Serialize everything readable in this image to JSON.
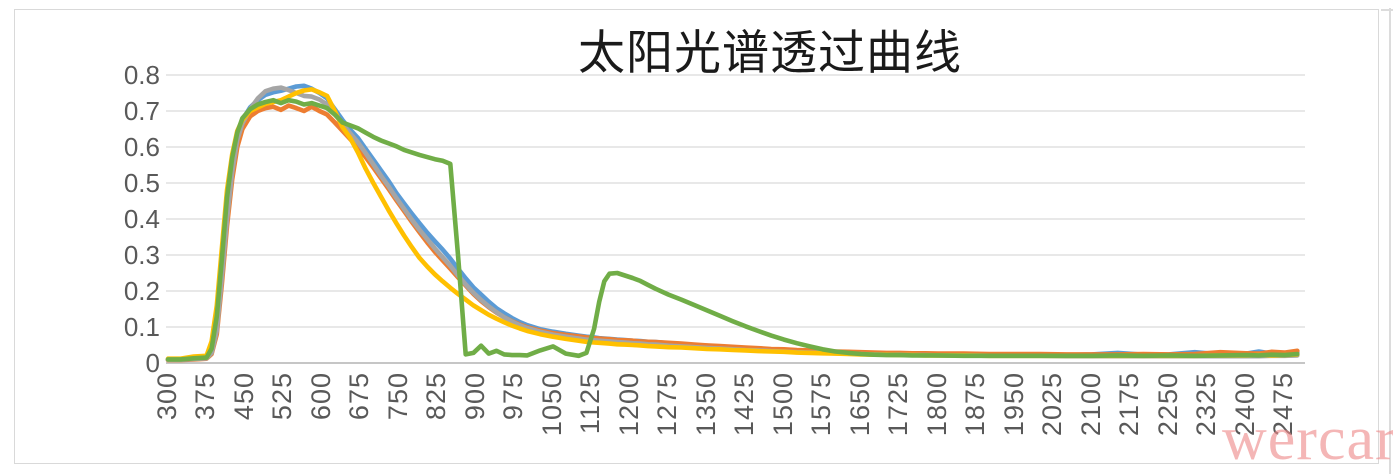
{
  "title": "太阳光谱透过曲线",
  "watermark": "wercar",
  "colors": {
    "background": "#ffffff",
    "frame_border": "#d9d9d9",
    "gridline": "#d9d9d9",
    "zero_axis_line": "#c6c6c6",
    "tick_label": "#595959",
    "title_text": "#1a1a1a",
    "watermark_text": "#ee8a8a"
  },
  "chart_data": {
    "type": "line",
    "title": "太阳光谱透过曲线",
    "xlabel": "",
    "ylabel": "",
    "legend": "none",
    "grid": true,
    "ylim": [
      0,
      0.8
    ],
    "xlim": [
      300,
      2510
    ],
    "y_ticks": [
      0,
      0.1,
      0.2,
      0.3,
      0.4,
      0.5,
      0.6,
      0.7,
      0.8
    ],
    "y_tick_labels": [
      "0",
      "0.1",
      "0.2",
      "0.3",
      "0.4",
      "0.5",
      "0.6",
      "0.7",
      "0.8"
    ],
    "x_tick_values": [
      300,
      375,
      450,
      525,
      600,
      675,
      750,
      825,
      900,
      975,
      1050,
      1125,
      1200,
      1275,
      1350,
      1425,
      1500,
      1575,
      1650,
      1725,
      1800,
      1875,
      1950,
      2025,
      2100,
      2175,
      2250,
      2325,
      2400,
      2475
    ],
    "x": [
      300,
      325,
      350,
      375,
      385,
      395,
      405,
      415,
      425,
      435,
      445,
      460,
      475,
      490,
      505,
      520,
      535,
      550,
      565,
      580,
      595,
      610,
      625,
      640,
      655,
      670,
      685,
      700,
      715,
      730,
      745,
      760,
      775,
      790,
      805,
      820,
      835,
      850,
      865,
      880,
      895,
      910,
      925,
      940,
      955,
      970,
      985,
      1000,
      1025,
      1050,
      1075,
      1100,
      1115,
      1130,
      1140,
      1150,
      1160,
      1175,
      1190,
      1205,
      1220,
      1235,
      1250,
      1275,
      1300,
      1325,
      1350,
      1375,
      1400,
      1425,
      1450,
      1475,
      1500,
      1525,
      1550,
      1575,
      1600,
      1625,
      1650,
      1675,
      1700,
      1725,
      1750,
      1775,
      1800,
      1850,
      1900,
      1950,
      2000,
      2050,
      2100,
      2150,
      2200,
      2250,
      2300,
      2350,
      2400,
      2425,
      2450,
      2475,
      2500
    ],
    "series": [
      {
        "name": "series1",
        "color": "#5B9BD5",
        "values": [
          0.01,
          0.01,
          0.012,
          0.015,
          0.03,
          0.1,
          0.25,
          0.42,
          0.55,
          0.63,
          0.675,
          0.71,
          0.73,
          0.745,
          0.752,
          0.756,
          0.762,
          0.768,
          0.77,
          0.762,
          0.75,
          0.735,
          0.705,
          0.675,
          0.648,
          0.625,
          0.595,
          0.565,
          0.535,
          0.505,
          0.472,
          0.443,
          0.415,
          0.388,
          0.362,
          0.338,
          0.315,
          0.29,
          0.262,
          0.235,
          0.21,
          0.19,
          0.17,
          0.152,
          0.138,
          0.125,
          0.114,
          0.105,
          0.094,
          0.087,
          0.081,
          0.076,
          0.073,
          0.071,
          0.069,
          0.068,
          0.067,
          0.065,
          0.064,
          0.062,
          0.061,
          0.059,
          0.058,
          0.055,
          0.052,
          0.05,
          0.048,
          0.045,
          0.043,
          0.041,
          0.039,
          0.037,
          0.036,
          0.034,
          0.033,
          0.031,
          0.03,
          0.029,
          0.028,
          0.027,
          0.026,
          0.026,
          0.025,
          0.025,
          0.024,
          0.024,
          0.023,
          0.023,
          0.023,
          0.022,
          0.024,
          0.028,
          0.023,
          0.024,
          0.03,
          0.024,
          0.026,
          0.032,
          0.026,
          0.028,
          0.03
        ]
      },
      {
        "name": "series2",
        "color": "#ED7D31",
        "values": [
          0.008,
          0.008,
          0.01,
          0.012,
          0.025,
          0.08,
          0.22,
          0.38,
          0.51,
          0.6,
          0.65,
          0.685,
          0.7,
          0.708,
          0.712,
          0.703,
          0.715,
          0.708,
          0.7,
          0.712,
          0.7,
          0.69,
          0.668,
          0.645,
          0.622,
          0.6,
          0.572,
          0.543,
          0.513,
          0.483,
          0.452,
          0.422,
          0.392,
          0.363,
          0.335,
          0.309,
          0.285,
          0.262,
          0.238,
          0.215,
          0.192,
          0.172,
          0.155,
          0.14,
          0.127,
          0.116,
          0.107,
          0.099,
          0.09,
          0.083,
          0.078,
          0.074,
          0.071,
          0.069,
          0.068,
          0.067,
          0.066,
          0.064,
          0.063,
          0.062,
          0.06,
          0.059,
          0.058,
          0.056,
          0.054,
          0.051,
          0.049,
          0.047,
          0.045,
          0.043,
          0.041,
          0.039,
          0.038,
          0.036,
          0.035,
          0.033,
          0.032,
          0.031,
          0.03,
          0.029,
          0.028,
          0.028,
          0.027,
          0.027,
          0.026,
          0.026,
          0.025,
          0.025,
          0.025,
          0.024,
          0.024,
          0.024,
          0.025,
          0.024,
          0.025,
          0.03,
          0.027,
          0.026,
          0.031,
          0.029,
          0.034
        ]
      },
      {
        "name": "series3",
        "color": "#A5A5A5",
        "values": [
          0.009,
          0.009,
          0.011,
          0.013,
          0.028,
          0.09,
          0.24,
          0.4,
          0.53,
          0.62,
          0.665,
          0.705,
          0.735,
          0.755,
          0.762,
          0.765,
          0.758,
          0.75,
          0.742,
          0.74,
          0.732,
          0.718,
          0.692,
          0.664,
          0.638,
          0.613,
          0.583,
          0.552,
          0.52,
          0.49,
          0.458,
          0.428,
          0.398,
          0.37,
          0.344,
          0.318,
          0.294,
          0.27,
          0.243,
          0.218,
          0.195,
          0.175,
          0.157,
          0.141,
          0.127,
          0.115,
          0.105,
          0.097,
          0.087,
          0.079,
          0.073,
          0.068,
          0.065,
          0.063,
          0.062,
          0.061,
          0.06,
          0.058,
          0.057,
          0.055,
          0.054,
          0.052,
          0.051,
          0.048,
          0.046,
          0.044,
          0.042,
          0.04,
          0.038,
          0.036,
          0.035,
          0.033,
          0.032,
          0.03,
          0.029,
          0.028,
          0.027,
          0.026,
          0.025,
          0.024,
          0.023,
          0.023,
          0.022,
          0.022,
          0.021,
          0.021,
          0.02,
          0.02,
          0.02,
          0.019,
          0.019,
          0.019,
          0.019,
          0.019,
          0.019,
          0.019,
          0.019,
          0.019,
          0.02,
          0.02,
          0.021
        ]
      },
      {
        "name": "series4",
        "color": "#FFC000",
        "values": [
          0.012,
          0.012,
          0.018,
          0.02,
          0.06,
          0.16,
          0.32,
          0.48,
          0.58,
          0.645,
          0.675,
          0.7,
          0.71,
          0.72,
          0.725,
          0.73,
          0.74,
          0.75,
          0.757,
          0.76,
          0.752,
          0.742,
          0.7,
          0.655,
          0.625,
          0.585,
          0.54,
          0.5,
          0.462,
          0.424,
          0.388,
          0.354,
          0.322,
          0.292,
          0.268,
          0.246,
          0.227,
          0.209,
          0.192,
          0.176,
          0.16,
          0.147,
          0.134,
          0.123,
          0.113,
          0.104,
          0.096,
          0.089,
          0.08,
          0.073,
          0.067,
          0.062,
          0.059,
          0.057,
          0.056,
          0.055,
          0.054,
          0.052,
          0.051,
          0.05,
          0.049,
          0.047,
          0.046,
          0.044,
          0.043,
          0.041,
          0.039,
          0.038,
          0.036,
          0.035,
          0.033,
          0.032,
          0.031,
          0.029,
          0.028,
          0.027,
          0.026,
          0.025,
          0.024,
          0.023,
          0.023,
          0.022,
          0.022,
          0.021,
          0.021,
          0.021,
          0.02,
          0.02,
          0.02,
          0.02,
          0.02,
          0.02,
          0.02,
          0.02,
          0.02,
          0.021,
          0.021,
          0.022,
          0.021,
          0.022,
          0.024
        ]
      },
      {
        "name": "series5",
        "color": "#70AD47",
        "values": [
          0.01,
          0.01,
          0.013,
          0.015,
          0.04,
          0.13,
          0.29,
          0.46,
          0.57,
          0.64,
          0.68,
          0.705,
          0.718,
          0.725,
          0.73,
          0.722,
          0.73,
          0.726,
          0.718,
          0.722,
          0.715,
          0.708,
          0.69,
          0.668,
          0.66,
          0.652,
          0.64,
          0.628,
          0.618,
          0.61,
          0.602,
          0.592,
          0.585,
          0.578,
          0.572,
          0.566,
          0.562,
          0.553,
          0.3,
          0.024,
          0.028,
          0.048,
          0.026,
          0.034,
          0.024,
          0.022,
          0.022,
          0.021,
          0.035,
          0.046,
          0.026,
          0.02,
          0.028,
          0.095,
          0.17,
          0.227,
          0.248,
          0.25,
          0.243,
          0.236,
          0.228,
          0.217,
          0.206,
          0.19,
          0.176,
          0.161,
          0.146,
          0.131,
          0.116,
          0.102,
          0.089,
          0.076,
          0.065,
          0.055,
          0.046,
          0.038,
          0.032,
          0.028,
          0.025,
          0.023,
          0.022,
          0.022,
          0.021,
          0.021,
          0.021,
          0.02,
          0.02,
          0.02,
          0.02,
          0.02,
          0.02,
          0.021,
          0.02,
          0.021,
          0.02,
          0.021,
          0.022,
          0.021,
          0.023,
          0.022,
          0.025
        ]
      }
    ]
  }
}
